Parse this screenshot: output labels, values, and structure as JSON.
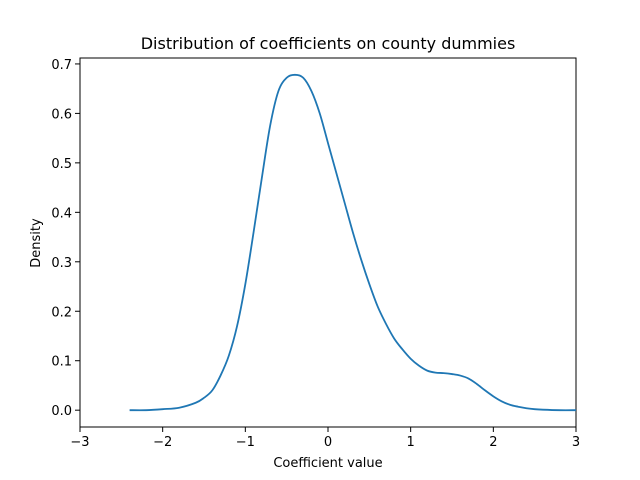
{
  "chart_data": {
    "type": "line",
    "title": "Distribution of coefficients on county dummies",
    "xlabel": "Coefficient value",
    "ylabel": "Density",
    "xlim": [
      -3,
      3
    ],
    "ylim": [
      -0.034,
      0.712
    ],
    "xticks": [
      -3,
      -2,
      -1,
      0,
      1,
      2,
      3
    ],
    "xtick_labels": [
      "−3",
      "−2",
      "−1",
      "0",
      "1",
      "2",
      "3"
    ],
    "yticks": [
      0.0,
      0.1,
      0.2,
      0.3,
      0.4,
      0.5,
      0.6,
      0.7
    ],
    "ytick_labels": [
      "0.0",
      "0.1",
      "0.2",
      "0.3",
      "0.4",
      "0.5",
      "0.6",
      "0.7"
    ],
    "grid": false,
    "series": [
      {
        "color": "#1f77b4",
        "x": [
          -2.4,
          -2.2,
          -2.0,
          -1.8,
          -1.6,
          -1.5,
          -1.4,
          -1.3,
          -1.2,
          -1.1,
          -1.0,
          -0.9,
          -0.8,
          -0.7,
          -0.6,
          -0.5,
          -0.4,
          -0.3,
          -0.2,
          -0.1,
          0.0,
          0.1,
          0.2,
          0.3,
          0.4,
          0.5,
          0.6,
          0.7,
          0.8,
          0.9,
          1.0,
          1.1,
          1.2,
          1.3,
          1.4,
          1.5,
          1.6,
          1.7,
          1.8,
          1.9,
          2.0,
          2.1,
          2.2,
          2.3,
          2.4,
          2.5,
          2.6,
          2.8,
          3.0
        ],
        "y": [
          0.0,
          0.0,
          0.002,
          0.005,
          0.015,
          0.025,
          0.04,
          0.07,
          0.11,
          0.17,
          0.255,
          0.36,
          0.47,
          0.575,
          0.645,
          0.672,
          0.678,
          0.672,
          0.645,
          0.6,
          0.54,
          0.48,
          0.42,
          0.36,
          0.305,
          0.255,
          0.21,
          0.175,
          0.145,
          0.123,
          0.104,
          0.09,
          0.08,
          0.076,
          0.075,
          0.073,
          0.07,
          0.064,
          0.053,
          0.04,
          0.028,
          0.018,
          0.011,
          0.007,
          0.004,
          0.002,
          0.001,
          0.0,
          0.0
        ]
      }
    ]
  }
}
